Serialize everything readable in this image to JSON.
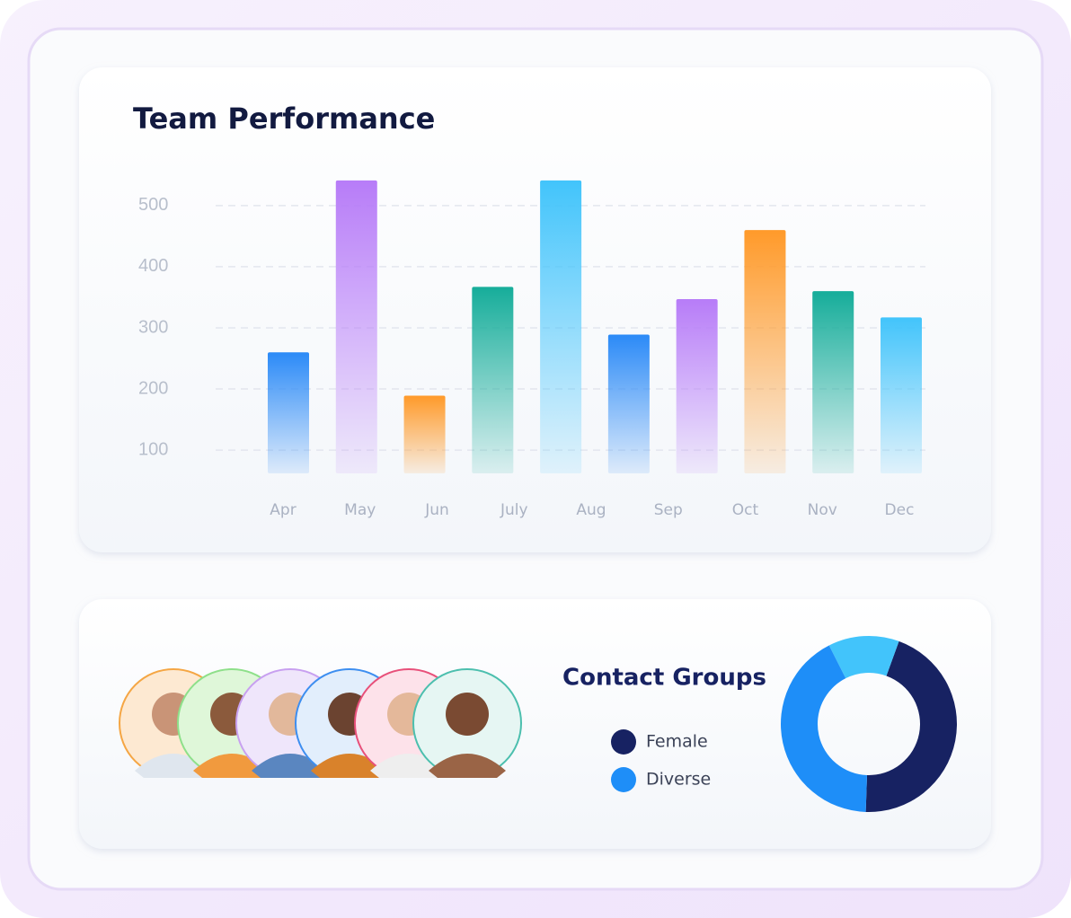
{
  "chart_data": [
    {
      "type": "bar",
      "title": "Team Performance",
      "categories": [
        "Apr",
        "May",
        "Jun",
        "July",
        "Aug",
        null,
        "Sep",
        "Oct",
        "Nov",
        "Dec"
      ],
      "values": [
        260,
        541,
        189,
        367,
        541,
        289,
        347,
        460,
        360,
        317
      ],
      "colors": [
        "#2b8af7",
        "#b77cf8",
        "#ff9a2a",
        "#16ad9a",
        "#42c4fb",
        "#2b8af7",
        "#b77cf8",
        "#ff9a2a",
        "#16ad9a",
        "#42c4fb"
      ],
      "ylim": [
        62,
        560
      ],
      "yticks": [
        100,
        200,
        300,
        400,
        500
      ],
      "grid": true
    },
    {
      "type": "donut",
      "title": "Contact Groups",
      "categories": [
        "Female",
        "Diverse",
        null
      ],
      "values": [
        45,
        42,
        13
      ],
      "colors": [
        "#172262",
        "#1e8ef8",
        "#42c4fb"
      ]
    }
  ]
}
